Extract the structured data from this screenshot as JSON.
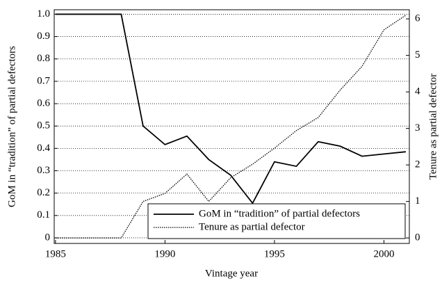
{
  "chart_data": {
    "type": "line",
    "x_label": "Vintage year",
    "y_label": "GoM in “tradition” of partial defectors",
    "y2_label": "Tenure as partial defector",
    "x": [
      1985,
      1986,
      1987,
      1988,
      1989,
      1990,
      1991,
      1992,
      1993,
      1994,
      1995,
      1996,
      1997,
      1998,
      1999,
      2000,
      2001
    ],
    "series": [
      {
        "name": "GoM in “tradition” of partial defectors",
        "color": "#000000",
        "linestyle": "solid",
        "values": [
          1,
          1,
          1,
          1,
          0.5,
          0.417,
          0.455,
          0.35,
          0.28,
          0.155,
          0.34,
          0.32,
          0.43,
          0.41,
          0.365,
          0.375,
          0.385
        ]
      },
      {
        "name": "Tenure as partial defector",
        "color": "#000000",
        "linestyle": "dotted",
        "axis": "y2",
        "values": [
          0,
          0,
          0,
          0,
          1,
          1.22,
          1.75,
          1,
          1.65,
          2.02,
          2.46,
          2.94,
          3.3,
          4.05,
          4.7,
          5.7,
          6.1
        ]
      }
    ],
    "xlim": [
      1984.94,
      2001.16
    ],
    "xticks": [
      1985,
      1990,
      1995,
      2000
    ],
    "ylim": [
      -0.025,
      1.02
    ],
    "yticks": [
      0,
      {
        "value": 0.1,
        "label": "0.1"
      },
      {
        "value": 0.2,
        "label": "0.2"
      },
      {
        "value": 0.3,
        "label": "0.3"
      },
      {
        "value": 0.4,
        "label": "0.4"
      },
      {
        "value": 0.5,
        "label": "0.5"
      },
      {
        "value": 0.6,
        "label": "0.6"
      },
      {
        "value": 0.7,
        "label": "0.7"
      },
      {
        "value": 0.8,
        "label": "0.8"
      },
      {
        "value": 0.9,
        "label": "0.9"
      },
      {
        "value": 1,
        "label": "1.0"
      }
    ],
    "y2lim": [
      -0.15,
      6.25
    ],
    "y2ticks": [
      0,
      1,
      2,
      3,
      4,
      5,
      6
    ],
    "grid": true,
    "legend": "lower right"
  }
}
